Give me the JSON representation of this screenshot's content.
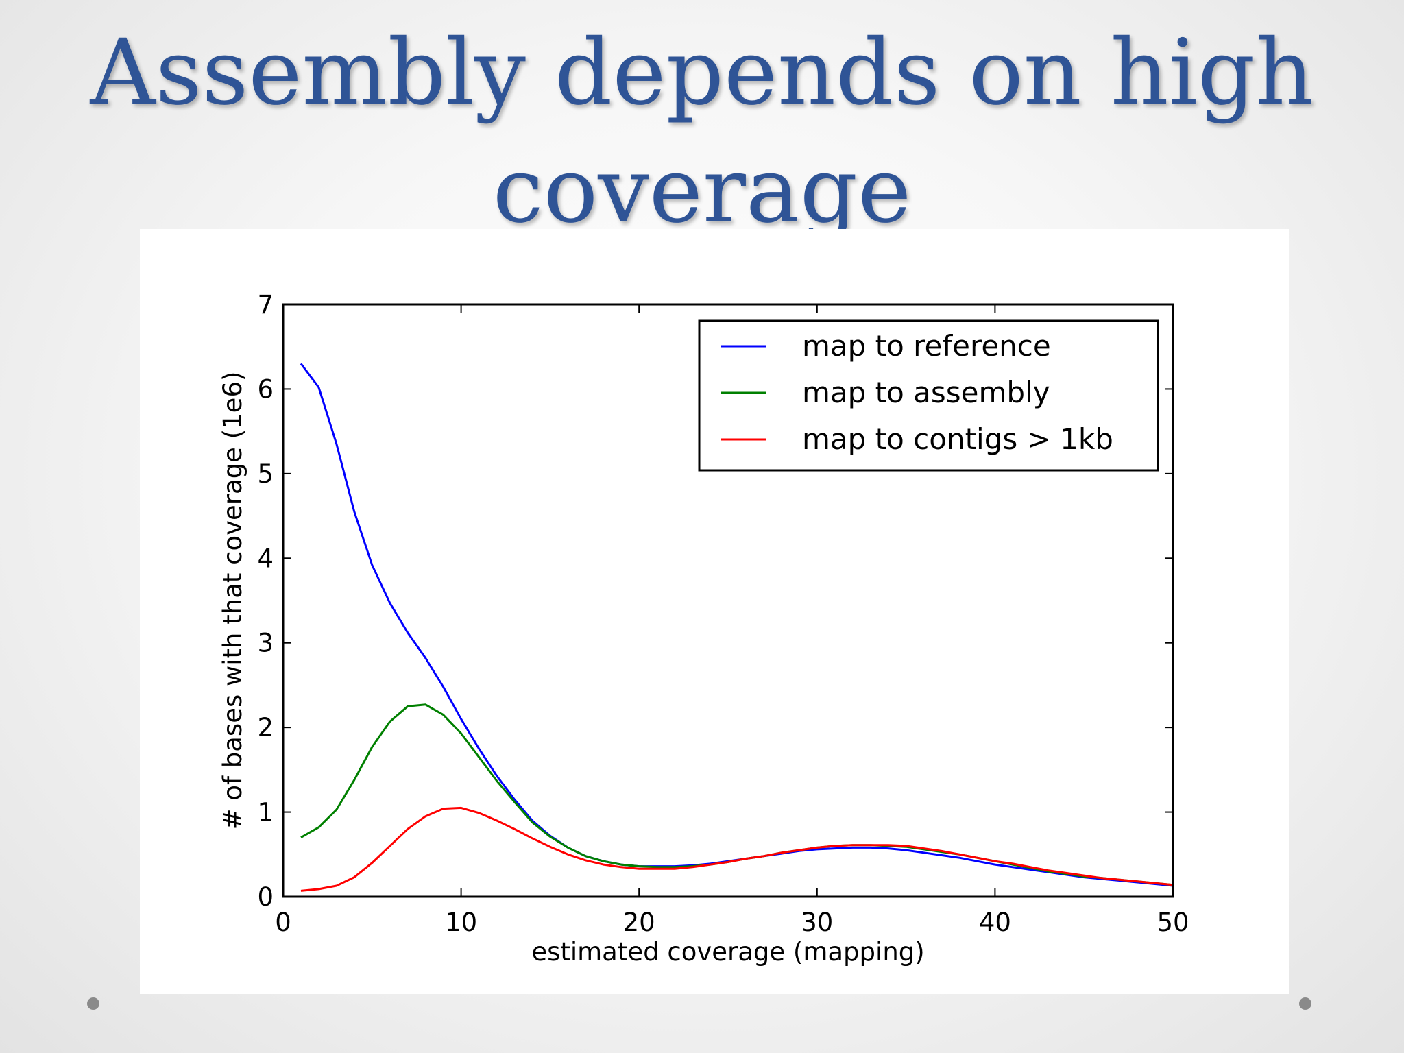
{
  "slide": {
    "title_line1": "Assembly depends on high",
    "title_line2": "coverage"
  },
  "chart_data": {
    "type": "line",
    "xlabel": "estimated coverage (mapping)",
    "ylabel": "# of bases with that coverage (1e6)",
    "xlim": [
      0,
      50
    ],
    "ylim": [
      0,
      7
    ],
    "xticks": [
      0,
      10,
      20,
      30,
      40,
      50
    ],
    "yticks": [
      0,
      1,
      2,
      3,
      4,
      5,
      6,
      7
    ],
    "grid": false,
    "legend_position": "top-right",
    "series": [
      {
        "name": "map to reference",
        "color": "#0000ff",
        "x": [
          1,
          2,
          3,
          4,
          5,
          6,
          7,
          8,
          9,
          10,
          11,
          12,
          13,
          14,
          15,
          16,
          17,
          18,
          19,
          20,
          21,
          22,
          23,
          24,
          25,
          26,
          27,
          28,
          29,
          30,
          31,
          32,
          33,
          34,
          35,
          36,
          37,
          38,
          39,
          40,
          41,
          42,
          43,
          44,
          45,
          46,
          47,
          48,
          49,
          50
        ],
        "y": [
          6.3,
          6.02,
          5.35,
          4.55,
          3.92,
          3.47,
          3.12,
          2.82,
          2.48,
          2.1,
          1.75,
          1.43,
          1.15,
          0.9,
          0.72,
          0.58,
          0.48,
          0.42,
          0.38,
          0.36,
          0.36,
          0.36,
          0.37,
          0.39,
          0.42,
          0.45,
          0.48,
          0.51,
          0.54,
          0.56,
          0.57,
          0.58,
          0.58,
          0.57,
          0.55,
          0.52,
          0.49,
          0.46,
          0.42,
          0.38,
          0.35,
          0.32,
          0.29,
          0.26,
          0.23,
          0.21,
          0.19,
          0.17,
          0.15,
          0.13
        ]
      },
      {
        "name": "map to assembly",
        "color": "#008000",
        "x": [
          1,
          2,
          3,
          4,
          5,
          6,
          7,
          8,
          9,
          10,
          11,
          12,
          13,
          14,
          15,
          16,
          17,
          18,
          19,
          20,
          21,
          22,
          23,
          24,
          25,
          26,
          27,
          28,
          29,
          30,
          31,
          32,
          33,
          34,
          35,
          36,
          37,
          38,
          39,
          40,
          41,
          42,
          43,
          44,
          45,
          46,
          47,
          48,
          49,
          50
        ],
        "y": [
          0.7,
          0.82,
          1.03,
          1.38,
          1.77,
          2.07,
          2.25,
          2.27,
          2.15,
          1.93,
          1.65,
          1.37,
          1.12,
          0.88,
          0.71,
          0.58,
          0.48,
          0.42,
          0.38,
          0.36,
          0.35,
          0.35,
          0.36,
          0.38,
          0.41,
          0.45,
          0.48,
          0.52,
          0.55,
          0.58,
          0.6,
          0.61,
          0.61,
          0.6,
          0.59,
          0.56,
          0.53,
          0.5,
          0.46,
          0.42,
          0.38,
          0.34,
          0.3,
          0.27,
          0.24,
          0.22,
          0.2,
          0.18,
          0.16,
          0.14
        ]
      },
      {
        "name": "map to contigs > 1kb",
        "color": "#ff0000",
        "x": [
          1,
          2,
          3,
          4,
          5,
          6,
          7,
          8,
          9,
          10,
          11,
          12,
          13,
          14,
          15,
          16,
          17,
          18,
          19,
          20,
          21,
          22,
          23,
          24,
          25,
          26,
          27,
          28,
          29,
          30,
          31,
          32,
          33,
          34,
          35,
          36,
          37,
          38,
          39,
          40,
          41,
          42,
          43,
          44,
          45,
          46,
          47,
          48,
          49,
          50
        ],
        "y": [
          0.07,
          0.09,
          0.13,
          0.23,
          0.4,
          0.6,
          0.8,
          0.95,
          1.04,
          1.05,
          0.99,
          0.9,
          0.8,
          0.69,
          0.59,
          0.5,
          0.43,
          0.38,
          0.35,
          0.33,
          0.33,
          0.33,
          0.35,
          0.38,
          0.41,
          0.45,
          0.48,
          0.52,
          0.55,
          0.58,
          0.6,
          0.61,
          0.61,
          0.61,
          0.6,
          0.57,
          0.54,
          0.5,
          0.46,
          0.42,
          0.39,
          0.35,
          0.31,
          0.28,
          0.25,
          0.22,
          0.2,
          0.18,
          0.16,
          0.14
        ]
      }
    ]
  }
}
